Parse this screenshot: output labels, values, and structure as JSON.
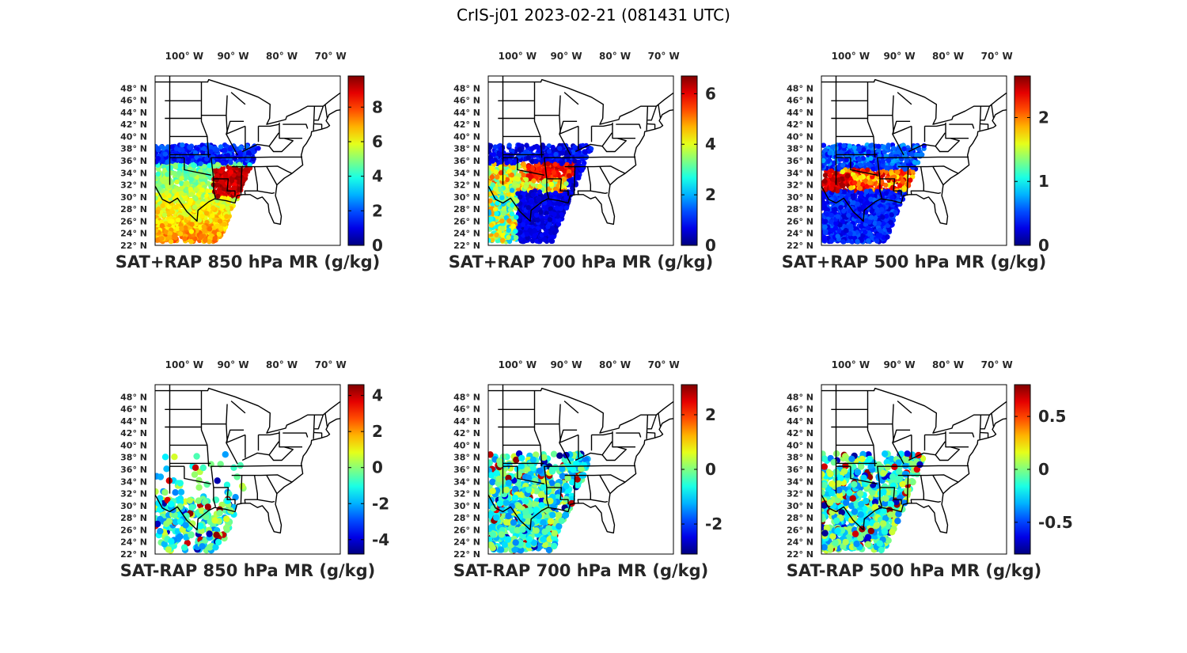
{
  "title": "CrIS-j01 2023-02-21 (081431 UTC)",
  "lon_ticks": [
    "100° W",
    "90° W",
    "80° W",
    "70° W"
  ],
  "lat_ticks": [
    "48° N",
    "46° N",
    "44° N",
    "42° N",
    "40° N",
    "38° N",
    "36° N",
    "34° N",
    "32° N",
    "30° N",
    "28° N",
    "26° N",
    "24° N",
    "22° N"
  ],
  "colormap": "jet",
  "map_extent": {
    "lon": [
      -106,
      -68
    ],
    "lat": [
      22,
      50
    ]
  },
  "panels": [
    {
      "id": "sat_rap_850",
      "title": "SAT+RAP 850 hPa MR (g/kg)",
      "clim": [
        0,
        9.8
      ],
      "ticks": [
        "8",
        "6",
        "4",
        "2",
        "0"
      ],
      "tick_values": [
        8,
        6,
        4,
        2,
        0
      ],
      "kind": "total",
      "level": 850
    },
    {
      "id": "sat_rap_700",
      "title": "SAT+RAP 700 hPa MR (g/kg)",
      "clim": [
        0,
        6.7
      ],
      "ticks": [
        "6",
        "4",
        "2",
        "0"
      ],
      "tick_values": [
        6,
        4,
        2,
        0
      ],
      "kind": "total",
      "level": 700
    },
    {
      "id": "sat_rap_500",
      "title": "SAT+RAP 500 hPa MR (g/kg)",
      "clim": [
        0,
        2.65
      ],
      "ticks": [
        "2",
        "1",
        "0"
      ],
      "tick_values": [
        2,
        1,
        0
      ],
      "kind": "total",
      "level": 500
    },
    {
      "id": "sat_minus_rap_850",
      "title": "SAT-RAP 850 hPa MR (g/kg)",
      "clim": [
        -4.8,
        4.6
      ],
      "ticks": [
        "4",
        "2",
        "0",
        "-2",
        "-4"
      ],
      "tick_values": [
        4,
        2,
        0,
        -2,
        -4
      ],
      "kind": "diff",
      "level": 850
    },
    {
      "id": "sat_minus_rap_700",
      "title": "SAT-RAP 700 hPa MR (g/kg)",
      "clim": [
        -3.1,
        3.1
      ],
      "ticks": [
        "2",
        "0",
        "-2"
      ],
      "tick_values": [
        2,
        0,
        -2
      ],
      "kind": "diff",
      "level": 700
    },
    {
      "id": "sat_minus_rap_500",
      "title": "SAT-RAP 500 hPa MR (g/kg)",
      "clim": [
        -0.8,
        0.8
      ],
      "ticks": [
        "0.5",
        "0",
        "-0.5"
      ],
      "tick_values": [
        0.5,
        0,
        -0.5
      ],
      "kind": "diff",
      "level": 500
    }
  ]
}
